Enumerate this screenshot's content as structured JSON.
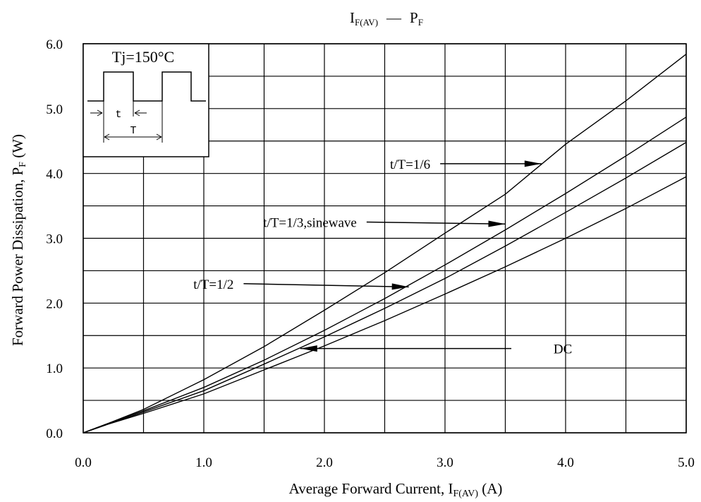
{
  "chart_data": {
    "type": "line",
    "title": {
      "main": "I",
      "main_sub": "F(AV)",
      "sep": "—",
      "second": "P",
      "second_sub": "F"
    },
    "xlabel": {
      "main": "Average Forward Current, I",
      "sub": "F(AV)",
      "unit": " (A)"
    },
    "ylabel": {
      "main": "Forward Power Dissipation, P",
      "sub": "F",
      "unit": " (W)"
    },
    "xlim": [
      0,
      5
    ],
    "ylim": [
      0,
      6
    ],
    "x_ticks": [
      "0.0",
      "1.0",
      "2.0",
      "3.0",
      "4.0",
      "5.0"
    ],
    "y_ticks": [
      "0.0",
      "1.0",
      "2.0",
      "3.0",
      "4.0",
      "5.0",
      "6.0"
    ],
    "grid": true,
    "series": [
      {
        "name": "DC",
        "x": [
          0,
          0.2,
          0.5,
          1.0,
          1.5,
          2.0,
          2.5,
          3.0,
          3.5,
          4.0,
          4.5,
          5.0
        ],
        "y": [
          0,
          0.13,
          0.3,
          0.6,
          0.97,
          1.34,
          1.73,
          2.14,
          2.56,
          3.0,
          3.46,
          3.95
        ]
      },
      {
        "name": "t/T=1/2",
        "x": [
          0,
          0.2,
          0.5,
          1.0,
          1.5,
          2.0,
          2.5,
          3.0,
          3.5,
          4.0,
          4.5,
          5.0
        ],
        "y": [
          0,
          0.13,
          0.32,
          0.65,
          1.06,
          1.48,
          1.92,
          2.38,
          2.88,
          3.4,
          3.93,
          4.48
        ]
      },
      {
        "name": "t/T=1/3,sinewave",
        "x": [
          0,
          0.2,
          0.5,
          1.0,
          1.5,
          2.0,
          2.5,
          3.0,
          3.5,
          4.0,
          4.5,
          5.0
        ],
        "y": [
          0,
          0.14,
          0.34,
          0.7,
          1.12,
          1.58,
          2.07,
          2.59,
          3.13,
          3.69,
          4.27,
          4.87
        ]
      },
      {
        "name": "t/T=1/6",
        "x": [
          0,
          0.2,
          0.5,
          1.0,
          1.5,
          2.0,
          2.5,
          3.0,
          3.5,
          4.0,
          4.5,
          5.0
        ],
        "y": [
          0,
          0.14,
          0.36,
          0.82,
          1.33,
          1.89,
          2.47,
          3.08,
          3.68,
          4.45,
          5.12,
          5.84
        ]
      }
    ],
    "annotations": [
      {
        "id": "dc",
        "text": "DC",
        "text_x": 3.9,
        "text_y": 1.3,
        "arrow_from": [
          3.55,
          1.3
        ],
        "arrow_to": [
          1.8,
          1.3
        ]
      },
      {
        "id": "half",
        "text": "t/T=1/2",
        "text_x": 1.33,
        "text_y": 2.3,
        "arrow_from": [
          1.33,
          2.3
        ],
        "arrow_to": [
          2.7,
          2.25
        ]
      },
      {
        "id": "third",
        "text": "t/T=1/3,sinewave",
        "text_x": 2.35,
        "text_y": 3.3,
        "arrow_from": [
          2.35,
          3.25
        ],
        "arrow_to": [
          3.5,
          3.22
        ]
      },
      {
        "id": "sixth",
        "text": "t/T=1/6",
        "text_x": 2.96,
        "text_y": 4.15,
        "arrow_from": [
          2.96,
          4.15
        ],
        "arrow_to": [
          3.8,
          4.15
        ]
      }
    ],
    "inset": {
      "title": "Tj=150°C",
      "t_label": "t",
      "T_label": "T"
    }
  }
}
